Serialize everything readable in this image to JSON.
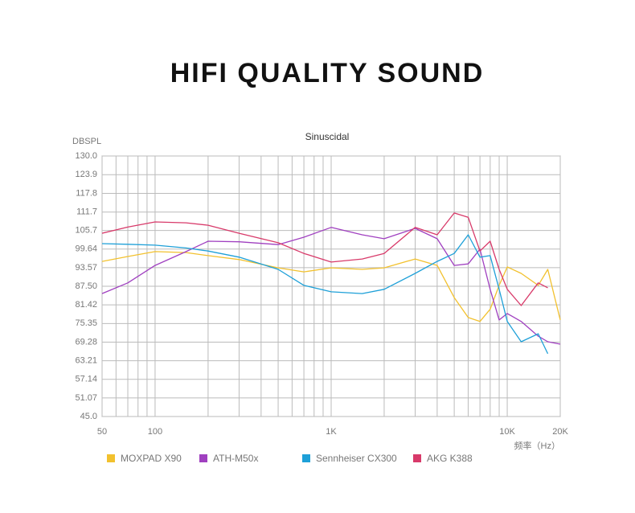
{
  "page_title": "HIFI QUALITY SOUND",
  "chart_data": {
    "type": "line",
    "title": "Sinuscidal",
    "y_label": "DBSPL",
    "x_label": "频率（Hz）",
    "xscale": "log",
    "grid": true,
    "xlim": [
      50,
      20000
    ],
    "xticks": [
      50,
      100,
      {
        "value": 1000,
        "label": "1K"
      },
      {
        "value": 10000,
        "label": "10K"
      },
      {
        "value": 20000,
        "label": "20K"
      }
    ],
    "xminor": [
      60,
      70,
      80,
      90,
      200,
      300,
      400,
      500,
      600,
      700,
      800,
      900,
      2000,
      3000,
      4000,
      5000,
      6000,
      7000,
      8000,
      9000
    ],
    "ylim": [
      45,
      130
    ],
    "yticks": [
      {
        "value": 130,
        "label": "130.0"
      },
      123.9,
      117.8,
      111.7,
      105.7,
      99.64,
      93.57,
      {
        "value": 87.5,
        "label": "87.50"
      },
      81.42,
      75.35,
      69.28,
      63.21,
      57.14,
      51.07,
      {
        "value": 45,
        "label": "45.0"
      }
    ],
    "x": [
      50,
      70,
      100,
      150,
      200,
      300,
      500,
      700,
      1000,
      1500,
      2000,
      3000,
      4000,
      5000,
      6000,
      7000,
      8000,
      9000,
      10000,
      12000,
      15000,
      17000,
      20000
    ],
    "series": [
      {
        "name": "MOXPAD X90",
        "color": "#f2c12e",
        "values": [
          95.6,
          97.2,
          98.8,
          98.5,
          97.5,
          96.2,
          93.5,
          92.2,
          93.5,
          93,
          93.5,
          96.4,
          94.3,
          83.8,
          77.3,
          76,
          80,
          87.8,
          93.8,
          91.7,
          87.8,
          93,
          76.5
        ]
      },
      {
        "name": "ATH-M50x",
        "color": "#a040c0",
        "values": [
          85.1,
          88.6,
          94.3,
          98.8,
          102.2,
          102,
          101.1,
          103.5,
          106.7,
          104.3,
          103,
          106.4,
          103,
          94.3,
          94.8,
          99.6,
          86.5,
          76.5,
          78.6,
          76,
          71.2,
          69.4,
          68.6
        ]
      },
      {
        "name": "Sennheiser CX300",
        "color": "#1ea0d8",
        "values": [
          101.4,
          101.2,
          100.9,
          100,
          99,
          97,
          93,
          87.8,
          85.7,
          85.1,
          86.5,
          91.7,
          95.6,
          98.2,
          104.3,
          97,
          97.5,
          86.5,
          76,
          69.4,
          72,
          65.5,
          null
        ]
      },
      {
        "name": "AKG K388",
        "color": "#d83a6a",
        "values": [
          104.8,
          106.8,
          108.5,
          108.2,
          107.4,
          104.8,
          101.7,
          98.2,
          95.4,
          96.4,
          98.2,
          106.7,
          104.3,
          111.4,
          110,
          99,
          102.2,
          93,
          86.5,
          81.2,
          88.6,
          87,
          null
        ]
      }
    ]
  }
}
